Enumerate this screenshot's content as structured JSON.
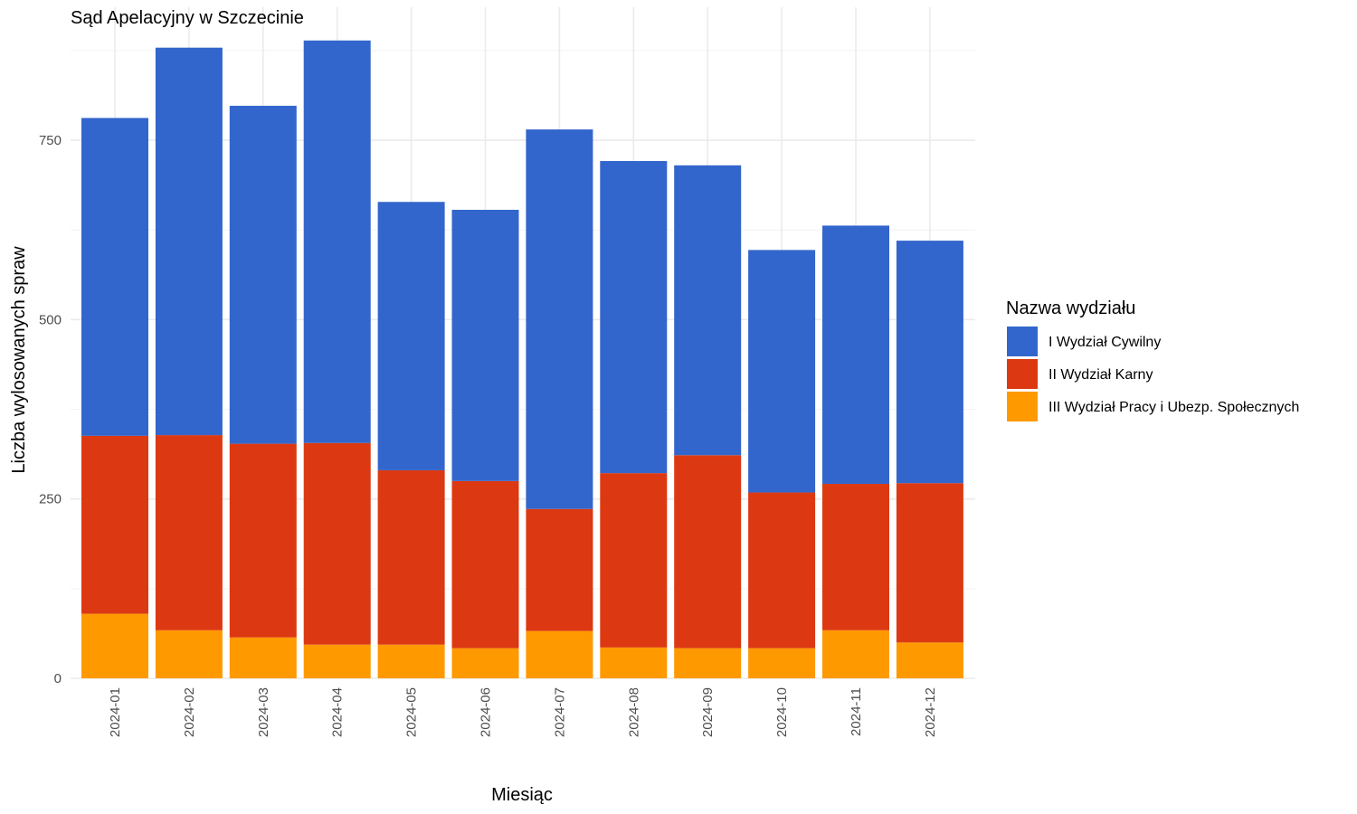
{
  "chart_data": {
    "type": "bar",
    "stacked": true,
    "title": "Sąd Apelacyjny w Szczecinie",
    "xlabel": "Miesiąc",
    "ylabel": "Liczba wylosowanych spraw",
    "ylim": [
      0,
      900
    ],
    "yticks": [
      0,
      250,
      500,
      750
    ],
    "grid": true,
    "legend_position": "right",
    "legend_title": "Nazwa wydziału",
    "categories": [
      "2024-01",
      "2024-02",
      "2024-03",
      "2024-04",
      "2024-05",
      "2024-06",
      "2024-07",
      "2024-08",
      "2024-09",
      "2024-10",
      "2024-11",
      "2024-12"
    ],
    "series": [
      {
        "name": "III Wydział Pracy i Ubezp. Społecznych",
        "color": "#FF9900",
        "values": [
          90,
          67,
          57,
          47,
          47,
          42,
          66,
          43,
          42,
          42,
          67,
          50
        ]
      },
      {
        "name": "II Wydział Karny",
        "color": "#DC3912",
        "values": [
          248,
          272,
          270,
          281,
          243,
          233,
          170,
          243,
          269,
          217,
          204,
          222
        ]
      },
      {
        "name": "I Wydział Cywilny",
        "color": "#3366CC",
        "values": [
          443,
          540,
          471,
          561,
          374,
          378,
          529,
          435,
          404,
          338,
          360,
          338
        ]
      }
    ],
    "legend_order": [
      "I Wydział Cywilny",
      "II Wydział Karny",
      "III Wydział Pracy i Ubezp. Społecznych"
    ]
  }
}
